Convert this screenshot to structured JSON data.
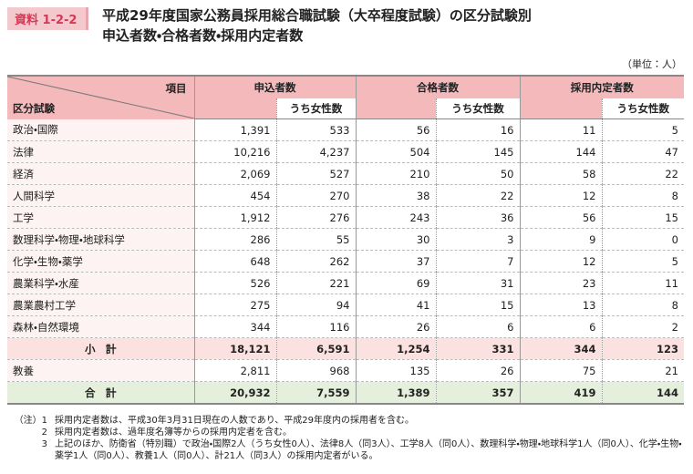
{
  "header": {
    "badge": "資料 1-2-2",
    "title_lines": [
      "平成29年度国家公務員採用総合職試験（大卒程度試験）の区分試験別",
      "申込者数・合格者数・採用内定者数"
    ],
    "unit": "（単位：人）"
  },
  "table": {
    "corner_top": "項目",
    "corner_bottom": "区分試験",
    "groups": [
      "申込者数",
      "合格者数",
      "採用内定者数"
    ],
    "sub_label": "うち女性数",
    "rows": [
      [
        "政治・国際",
        "1,391",
        "533",
        "56",
        "16",
        "11",
        "5"
      ],
      [
        "法律",
        "10,216",
        "4,237",
        "504",
        "145",
        "144",
        "47"
      ],
      [
        "経済",
        "2,069",
        "527",
        "210",
        "50",
        "58",
        "22"
      ],
      [
        "人間科学",
        "454",
        "270",
        "38",
        "22",
        "12",
        "8"
      ],
      [
        "工学",
        "1,912",
        "276",
        "243",
        "36",
        "56",
        "15"
      ],
      [
        "数理科学・物理・地球科学",
        "286",
        "55",
        "30",
        "3",
        "9",
        "0"
      ],
      [
        "化学・生物・薬学",
        "648",
        "262",
        "37",
        "7",
        "12",
        "5"
      ],
      [
        "農業科学・水産",
        "526",
        "221",
        "69",
        "31",
        "23",
        "11"
      ],
      [
        "農業農村工学",
        "275",
        "94",
        "41",
        "15",
        "13",
        "8"
      ],
      [
        "森林・自然環境",
        "344",
        "116",
        "26",
        "6",
        "6",
        "2"
      ],
      [
        "小　計",
        "18,121",
        "6,591",
        "1,254",
        "331",
        "344",
        "123"
      ],
      [
        "教養",
        "2,811",
        "968",
        "135",
        "26",
        "75",
        "21"
      ],
      [
        "合　計",
        "20,932",
        "7,559",
        "1,389",
        "357",
        "419",
        "144"
      ]
    ]
  },
  "notes": [
    {
      "marker": "（注）1",
      "text": "採用内定者数は、平成30年3月31日現在の人数であり、平成29年度内の採用者を含む。"
    },
    {
      "marker": "2",
      "text": "採用内定者数は、過年度名簿等からの採用内定者を含む。"
    },
    {
      "marker": "3",
      "text": "上記のほか、防衛省（特別職）で政治・国際2人（うち女性0人）、法律8人（同3人）、工学8人（同0人）、数理科学・物理・地球科学1人（同0人）、化学・生物・薬学1人（同0人）、教養1人（同0人）、計21人（同3人）の採用内定者がいる。"
    }
  ]
}
